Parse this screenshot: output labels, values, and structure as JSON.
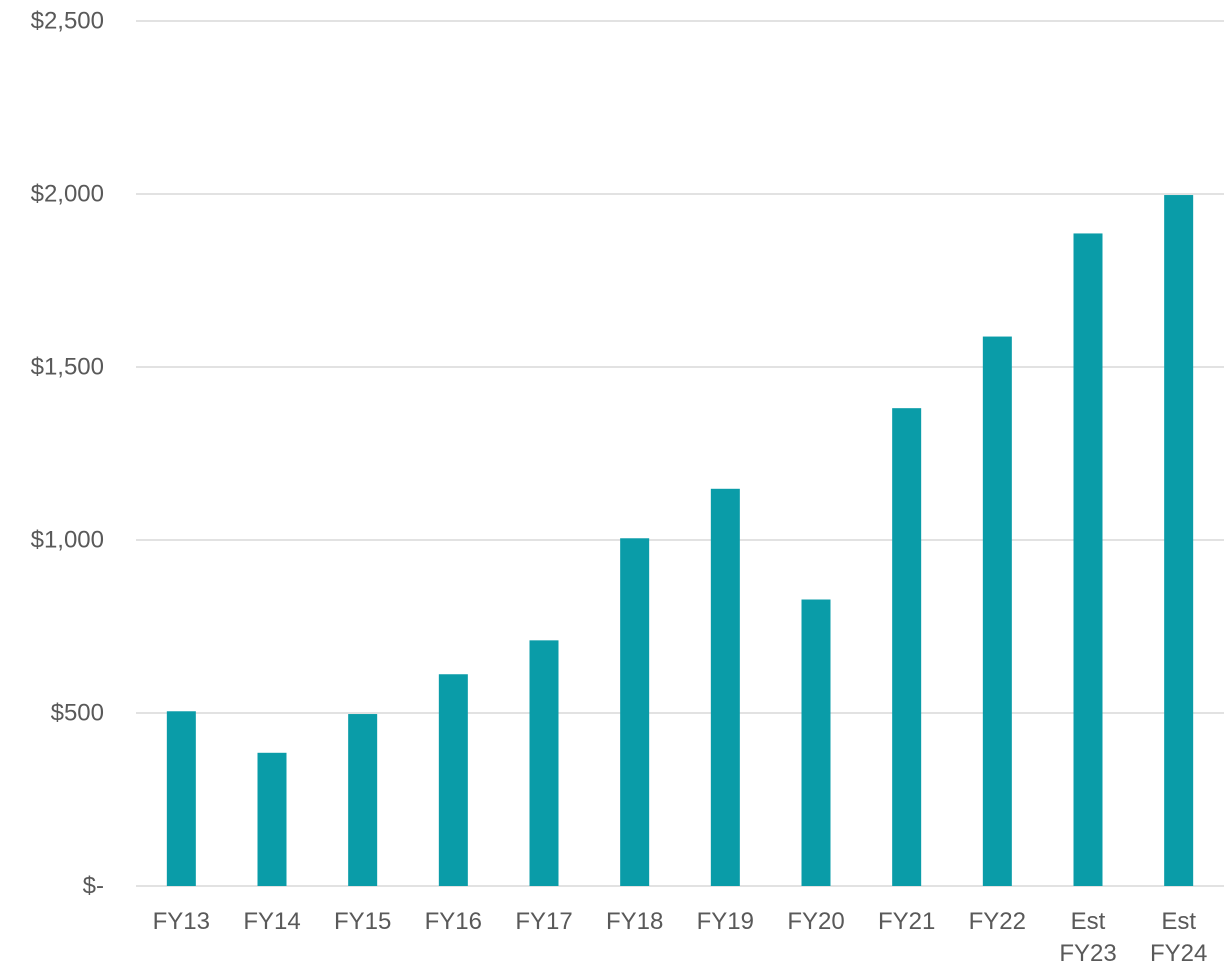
{
  "chart_data": {
    "type": "bar",
    "title": "",
    "xlabel": "",
    "ylabel": "",
    "categories": [
      "FY13",
      "FY14",
      "FY15",
      "FY16",
      "FY17",
      "FY18",
      "FY19",
      "FY20",
      "FY21",
      "FY22",
      "Est FY23",
      "Est FY24"
    ],
    "category_lines": [
      [
        "FY13"
      ],
      [
        "FY14"
      ],
      [
        "FY15"
      ],
      [
        "FY16"
      ],
      [
        "FY17"
      ],
      [
        "FY18"
      ],
      [
        "FY19"
      ],
      [
        "FY20"
      ],
      [
        "FY21"
      ],
      [
        "FY22"
      ],
      [
        "Est",
        "FY23"
      ],
      [
        "Est",
        "FY24"
      ]
    ],
    "values": [
      505,
      385,
      497,
      612,
      710,
      1005,
      1148,
      828,
      1381,
      1588,
      1886,
      1997
    ],
    "ylim": [
      0,
      2500
    ],
    "yticks": [
      0,
      500,
      1000,
      1500,
      2000,
      2500
    ],
    "ytick_labels": [
      "$-",
      "$500",
      "$1,000",
      "$1,500",
      "$2,000",
      "$2,500"
    ],
    "grid": true,
    "legend": "none",
    "bar_color": "#0a9ca8"
  }
}
